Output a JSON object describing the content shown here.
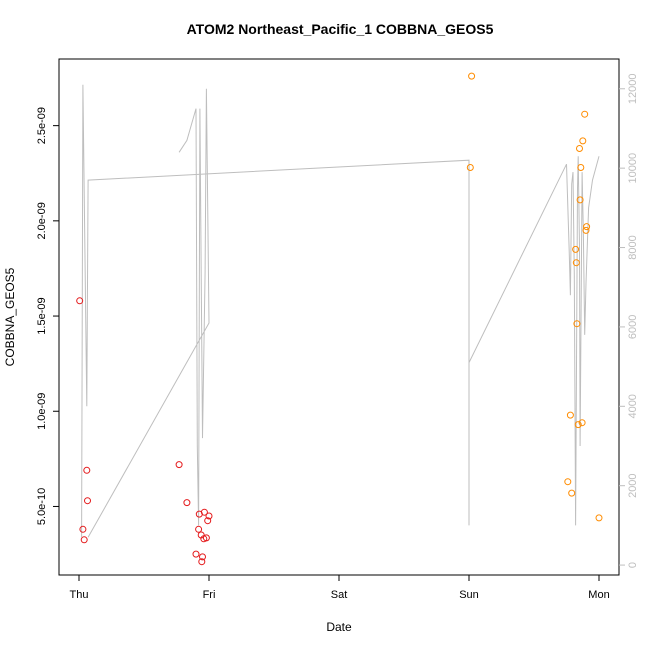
{
  "chart_data": {
    "type": "scatter",
    "title": "ATOM2 Northeast_Pacific_1 COBBNA_GEOS5",
    "xlabel": "Date",
    "ylabel": "COBBNA_GEOS5",
    "x_unit": "days from Thu 00:00",
    "xlim": [
      0,
      4
    ],
    "ylim": [
      1.4e-10,
      2.85e-09
    ],
    "x_ticks": [
      0,
      1,
      2,
      3,
      4
    ],
    "x_tick_labels": [
      "Thu",
      "Fri",
      "Sat",
      "Sun",
      "Mon"
    ],
    "y_ticks": [
      5e-10,
      1e-09,
      1.5e-09,
      2e-09,
      2.5e-09
    ],
    "y_tick_labels": [
      "5.0e-10",
      "1.0e-09",
      "1.5e-09",
      "2.0e-09",
      "2.5e-09"
    ],
    "y2_ticks": [
      0,
      2000,
      4000,
      6000,
      8000,
      10000,
      12000
    ],
    "y2_tick_labels": [
      "0",
      "2000",
      "4000",
      "6000",
      "8000",
      "10000",
      "12000"
    ],
    "y2lim": [
      -250,
      12750
    ],
    "series": [
      {
        "name": "",
        "color": "#e41a1c",
        "marker": "open-circle",
        "points": [
          [
            0.005,
            1.58e-09
          ],
          [
            0.03,
            3.8e-10
          ],
          [
            0.04,
            3.25e-10
          ],
          [
            0.06,
            6.9e-10
          ],
          [
            0.065,
            5.3e-10
          ],
          [
            0.77,
            7.2e-10
          ],
          [
            0.83,
            5.2e-10
          ],
          [
            0.9,
            2.5e-10
          ],
          [
            0.92,
            3.8e-10
          ],
          [
            0.925,
            4.6e-10
          ],
          [
            0.94,
            3.5e-10
          ],
          [
            0.945,
            2.1e-10
          ],
          [
            0.95,
            2.35e-10
          ],
          [
            0.96,
            3.3e-10
          ],
          [
            0.965,
            4.7e-10
          ],
          [
            0.98,
            3.35e-10
          ],
          [
            0.99,
            4.25e-10
          ],
          [
            1.0,
            4.5e-10
          ]
        ]
      },
      {
        "name": "",
        "color": "#ff8c00",
        "marker": "open-circle",
        "points": [
          [
            3.01,
            2.28e-09
          ],
          [
            3.02,
            2.76e-09
          ],
          [
            3.76,
            6.3e-10
          ],
          [
            3.78,
            9.8e-10
          ],
          [
            3.79,
            5.7e-10
          ],
          [
            3.82,
            1.85e-09
          ],
          [
            3.825,
            1.78e-09
          ],
          [
            3.83,
            1.46e-09
          ],
          [
            3.84,
            9.3e-10
          ],
          [
            3.85,
            2.38e-09
          ],
          [
            3.855,
            2.11e-09
          ],
          [
            3.86,
            2.28e-09
          ],
          [
            3.87,
            9.4e-10
          ],
          [
            3.875,
            2.42e-09
          ],
          [
            3.89,
            2.56e-09
          ],
          [
            3.9,
            1.95e-09
          ],
          [
            3.905,
            1.97e-09
          ],
          [
            4.0,
            4.4e-10
          ]
        ]
      }
    ],
    "altitude_trace": {
      "name": "",
      "axis": "right",
      "color": "#bebebe",
      "points": [
        [
          0.02,
          700
        ],
        [
          0.03,
          12100
        ],
        [
          0.06,
          4000
        ],
        [
          0.07,
          9700
        ],
        [
          3.0,
          10200
        ],
        [
          3.0,
          5200
        ],
        [
          3.0,
          1000
        ],
        [
          3.0,
          5100
        ],
        [
          3.75,
          10100
        ],
        [
          3.77,
          8000
        ],
        [
          3.78,
          6800
        ],
        [
          3.79,
          9600
        ],
        [
          3.8,
          9900
        ],
        [
          3.81,
          7300
        ],
        [
          3.82,
          1000
        ],
        [
          3.835,
          9500
        ],
        [
          3.84,
          10300
        ],
        [
          3.85,
          8000
        ],
        [
          3.855,
          3000
        ],
        [
          3.87,
          9900
        ],
        [
          3.88,
          8300
        ],
        [
          3.89,
          5800
        ],
        [
          3.9,
          7100
        ],
        [
          3.92,
          9000
        ],
        [
          3.95,
          9700
        ],
        [
          4.0,
          10300
        ]
      ],
      "segment2": [
        [
          0.77,
          10400
        ],
        [
          0.83,
          10700
        ],
        [
          0.9,
          11500
        ],
        [
          0.91,
          3000
        ],
        [
          0.92,
          1000
        ],
        [
          0.93,
          11500
        ],
        [
          0.95,
          3200
        ],
        [
          0.97,
          7400
        ],
        [
          0.98,
          12000
        ],
        [
          1.0,
          6100
        ],
        [
          0.07,
          700
        ]
      ]
    }
  }
}
